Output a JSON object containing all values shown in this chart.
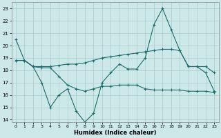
{
  "xlabel": "Humidex (Indice chaleur)",
  "ylabel": "",
  "background_color": "#cce8e8",
  "grid_color": "#aacccc",
  "line_color": "#1a6b6b",
  "xlim": [
    -0.5,
    23.5
  ],
  "ylim": [
    13.8,
    23.5
  ],
  "yticks": [
    14,
    15,
    16,
    17,
    18,
    19,
    20,
    21,
    22,
    23
  ],
  "xticks": [
    0,
    1,
    2,
    3,
    4,
    5,
    6,
    7,
    8,
    9,
    10,
    11,
    12,
    13,
    14,
    15,
    16,
    17,
    18,
    19,
    20,
    21,
    22,
    23
  ],
  "series": [
    {
      "x": [
        0,
        1,
        2,
        3,
        4,
        5,
        6,
        7,
        8,
        9,
        10,
        11,
        12,
        13,
        14,
        15,
        16,
        17,
        18,
        19,
        20,
        21,
        22,
        23
      ],
      "y": [
        20.5,
        18.8,
        18.3,
        17.0,
        15.0,
        16.0,
        16.5,
        14.7,
        13.8,
        14.5,
        17.0,
        17.8,
        18.5,
        18.1,
        18.1,
        19.0,
        21.7,
        23.0,
        21.3,
        19.6,
        18.3,
        18.3,
        17.8,
        16.3
      ]
    },
    {
      "x": [
        0,
        1,
        2,
        3,
        4,
        5,
        6,
        7,
        8,
        9,
        10,
        11,
        12,
        13,
        14,
        15,
        16,
        17,
        18,
        19,
        20,
        21,
        22,
        23
      ],
      "y": [
        18.8,
        18.8,
        18.3,
        18.3,
        18.3,
        18.4,
        18.5,
        18.5,
        18.6,
        18.8,
        19.0,
        19.1,
        19.2,
        19.3,
        19.4,
        19.5,
        19.6,
        19.7,
        19.7,
        19.6,
        18.3,
        18.3,
        18.3,
        17.8
      ]
    },
    {
      "x": [
        0,
        1,
        2,
        3,
        4,
        5,
        6,
        7,
        8,
        9,
        10,
        11,
        12,
        13,
        14,
        15,
        16,
        17,
        18,
        19,
        20,
        21,
        22,
        23
      ],
      "y": [
        18.8,
        18.8,
        18.3,
        18.2,
        18.2,
        17.5,
        16.8,
        16.5,
        16.3,
        16.5,
        16.7,
        16.7,
        16.8,
        16.8,
        16.8,
        16.5,
        16.4,
        16.4,
        16.4,
        16.4,
        16.3,
        16.3,
        16.3,
        16.2
      ]
    }
  ]
}
